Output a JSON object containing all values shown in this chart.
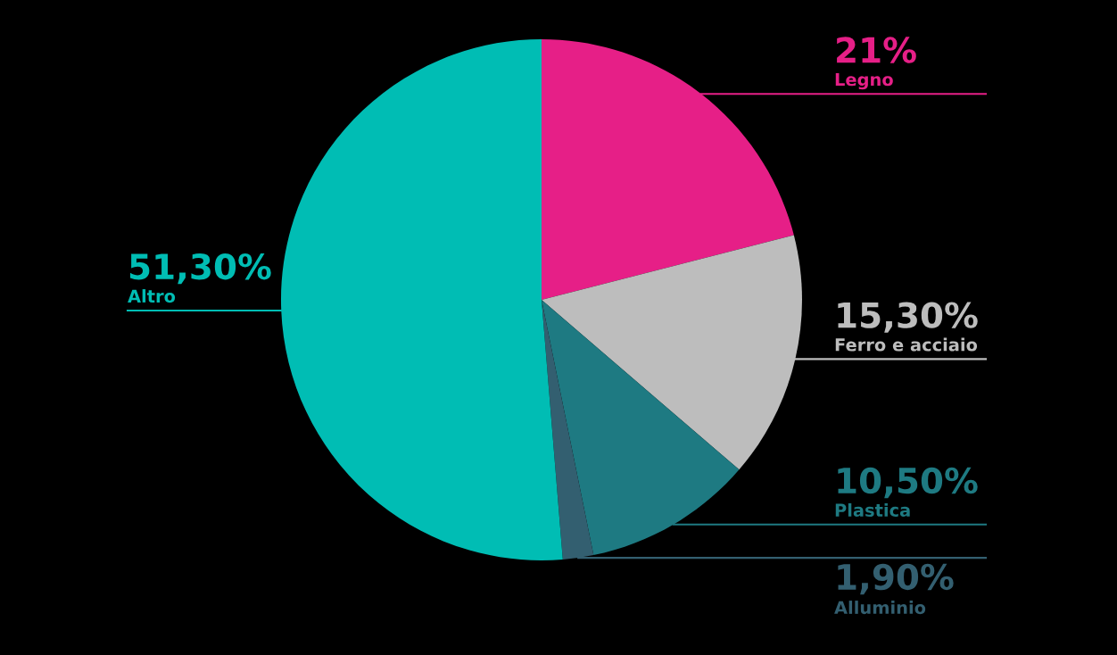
{
  "chart_data": {
    "type": "pie",
    "categories": [
      "Legno",
      "Ferro e acciaio",
      "Plastica",
      "Alluminio",
      "Altro"
    ],
    "values": [
      21,
      15.3,
      10.5,
      1.9,
      51.3
    ],
    "value_labels": [
      "21%",
      "15,30%",
      "10,50%",
      "1,90%",
      "51,30%"
    ],
    "colors": [
      "#e61f87",
      "#bdbdbd",
      "#1e7a82",
      "#335f70",
      "#00bdb4"
    ],
    "legend": false
  }
}
